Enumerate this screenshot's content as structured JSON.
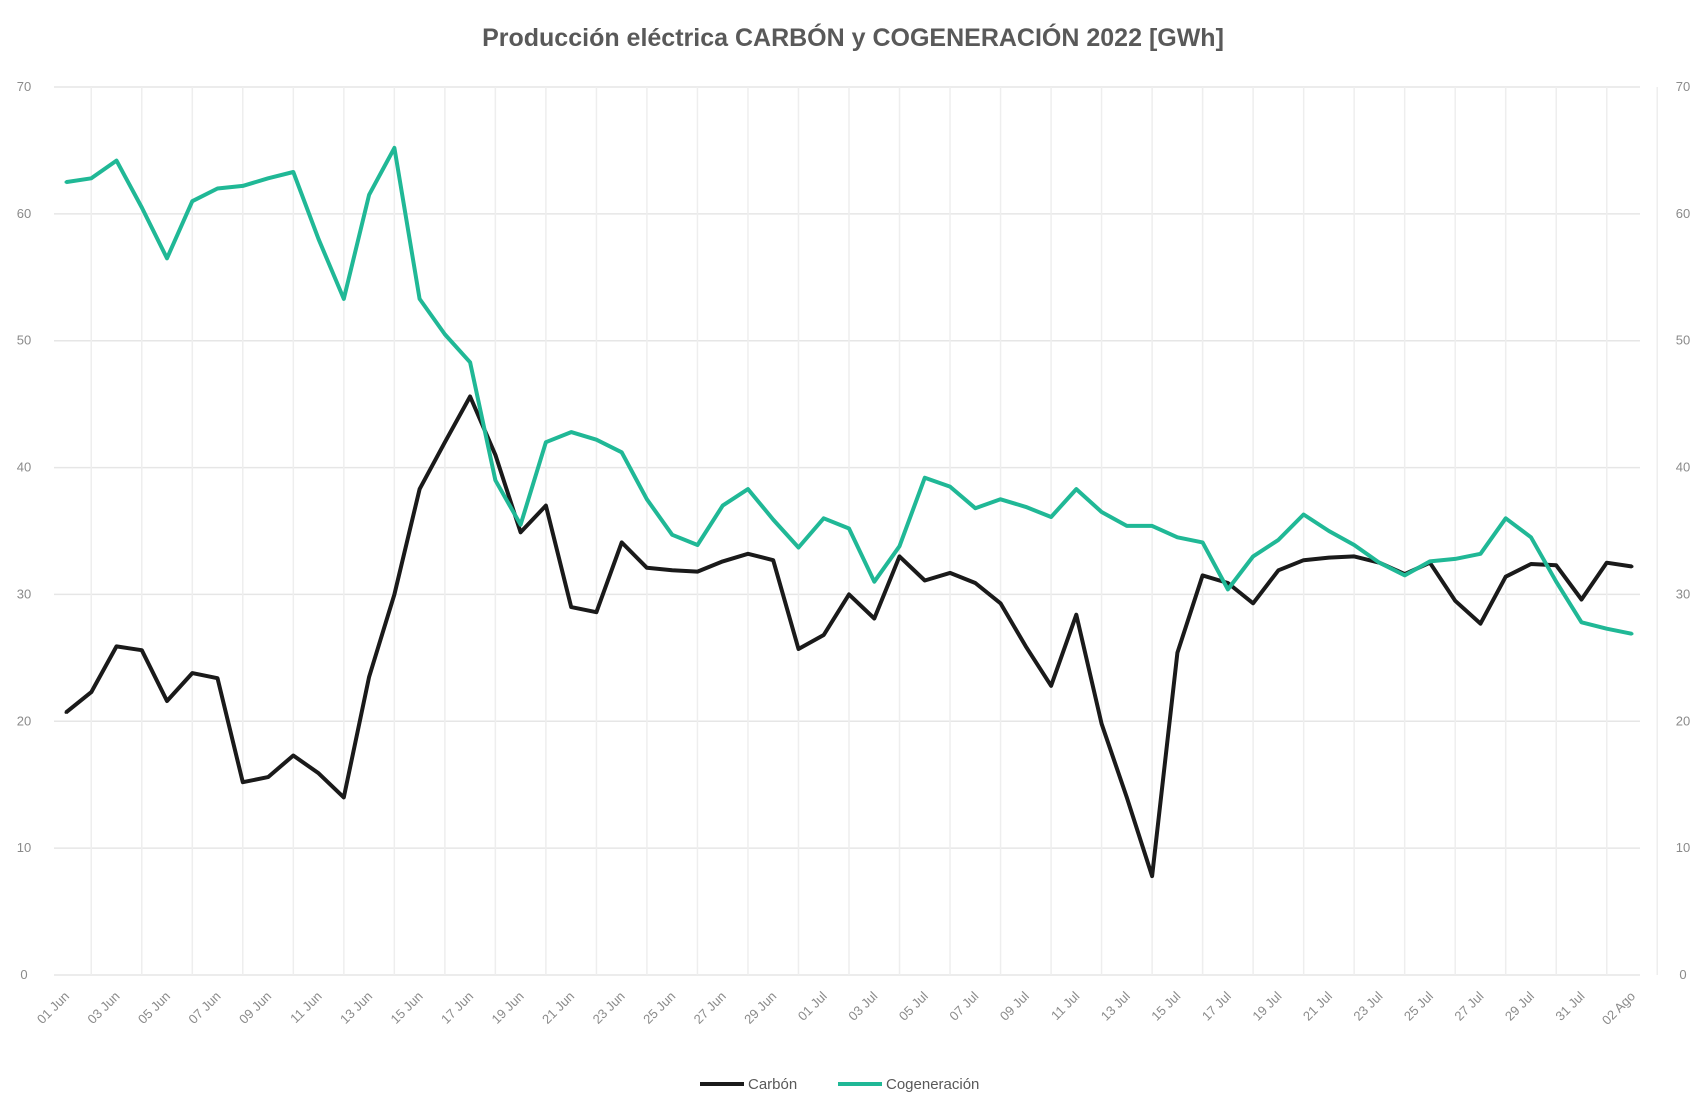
{
  "chart_data": {
    "type": "line",
    "title": "Producción eléctrica CARBÓN y COGENERACIÓN 2022 [GWh]",
    "xlabel": "",
    "ylabel": "",
    "ylim": [
      0,
      70
    ],
    "y_ticks": [
      "0",
      "10",
      "20",
      "30",
      "40",
      "50",
      "60",
      "70"
    ],
    "y2lim": [
      0,
      70
    ],
    "grid": true,
    "legend_position": "bottom",
    "x_start": "01 Jun",
    "x_end": "02 Ago",
    "x_tick_labels": [
      "01 Jun",
      "03 Jun",
      "05 Jun",
      "07 Jun",
      "09 Jun",
      "11 Jun",
      "13 Jun",
      "15 Jun",
      "17 Jun",
      "19 Jun",
      "21 Jun",
      "23 Jun",
      "25 Jun",
      "27 Jun",
      "29 Jun",
      "01 Jul",
      "03 Jul",
      "05 Jul",
      "07 Jul",
      "09 Jul",
      "11 Jul",
      "13 Jul",
      "15 Jul",
      "17 Jul",
      "19 Jul",
      "21 Jul",
      "23 Jul",
      "25 Jul",
      "27 Jul",
      "29 Jul",
      "31 Jul",
      "02 Ago"
    ],
    "series": [
      {
        "name": "Carbón",
        "color": "#1a1a1a",
        "values": [
          20.7,
          22.3,
          25.9,
          25.6,
          21.6,
          23.8,
          23.4,
          15.2,
          15.6,
          17.3,
          15.9,
          14.0,
          23.5,
          30.0,
          38.3,
          42.0,
          45.6,
          41.0,
          34.9,
          37.0,
          29.0,
          28.6,
          34.1,
          32.1,
          31.9,
          31.8,
          32.6,
          33.2,
          32.7,
          25.7,
          26.8,
          30.0,
          28.1,
          33.0,
          31.1,
          31.7,
          30.9,
          29.3,
          25.9,
          22.8,
          28.4,
          19.8,
          14.0,
          7.8,
          25.4,
          31.5,
          30.9,
          29.3,
          31.9,
          32.7,
          32.9,
          33.0,
          32.5,
          31.6,
          32.5,
          29.5,
          27.7,
          31.4,
          32.4,
          32.3,
          29.6,
          32.5,
          32.2
        ]
      },
      {
        "name": "Cogeneración",
        "color": "#20b896",
        "values": [
          62.5,
          62.8,
          64.2,
          60.5,
          56.5,
          61.0,
          62.0,
          62.2,
          62.8,
          63.3,
          58.0,
          53.3,
          61.5,
          65.2,
          53.3,
          50.5,
          48.3,
          39.0,
          35.5,
          42.0,
          42.8,
          42.2,
          41.2,
          37.5,
          34.7,
          33.9,
          37.0,
          38.3,
          35.9,
          33.7,
          36.0,
          35.2,
          31.0,
          33.8,
          39.2,
          38.5,
          36.8,
          37.5,
          36.9,
          36.1,
          38.3,
          36.5,
          35.4,
          35.4,
          34.5,
          34.1,
          30.4,
          33.0,
          34.3,
          36.3,
          35.0,
          33.9,
          32.5,
          31.5,
          32.6,
          32.8,
          33.2,
          36.0,
          34.5,
          31.0,
          27.8,
          27.3,
          26.9
        ]
      }
    ]
  }
}
